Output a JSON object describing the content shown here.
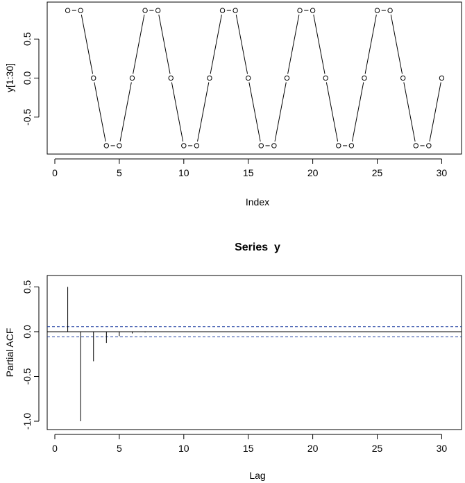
{
  "chart_data": [
    {
      "type": "line",
      "title": "",
      "xlabel": "Index",
      "ylabel": "y[1:30]",
      "xlim": [
        0,
        31
      ],
      "ylim": [
        -0.92,
        0.92
      ],
      "x_ticks": [
        0,
        5,
        10,
        15,
        20,
        25,
        30
      ],
      "y_ticks": [
        -0.5,
        0.0,
        0.5
      ],
      "y_tick_labels": [
        "-0.5",
        "0.0",
        "0.5"
      ],
      "grid": false,
      "marker": "open-circle",
      "style": "both",
      "x": [
        1,
        2,
        3,
        4,
        5,
        6,
        7,
        8,
        9,
        10,
        11,
        12,
        13,
        14,
        15,
        16,
        17,
        18,
        19,
        20,
        21,
        22,
        23,
        24,
        25,
        26,
        27,
        28,
        29,
        30
      ],
      "values": [
        0.866,
        0.866,
        0,
        -0.866,
        -0.866,
        0,
        0.866,
        0.866,
        0,
        -0.866,
        -0.866,
        0,
        0.866,
        0.866,
        0,
        -0.866,
        -0.866,
        0,
        0.866,
        0.866,
        0,
        -0.866,
        -0.866,
        0,
        0.866,
        0.866,
        0,
        -0.866,
        -0.866,
        0
      ]
    },
    {
      "type": "bar",
      "title": "Series  y",
      "xlabel": "Lag",
      "ylabel": "Partial ACF",
      "xlim": [
        0,
        31
      ],
      "ylim": [
        -1.0,
        0.55
      ],
      "x_ticks": [
        0,
        5,
        10,
        15,
        20,
        25,
        30
      ],
      "y_ticks": [
        -1.0,
        -0.5,
        0.0,
        0.5
      ],
      "y_tick_labels": [
        "-1.0",
        "-0.5",
        "0.0",
        "0.5"
      ],
      "grid": false,
      "confidence_band": 0.056,
      "x": [
        1,
        2,
        3,
        4,
        5,
        6,
        7,
        8,
        9,
        10,
        11,
        12,
        13,
        14,
        15,
        16,
        17,
        18,
        19,
        20,
        21,
        22,
        23,
        24,
        25,
        26,
        27,
        28,
        29,
        30
      ],
      "values": [
        0.5,
        -1.0,
        -0.33,
        -0.125,
        -0.05,
        -0.02,
        -0.008,
        -0.003,
        -0.001,
        0,
        0,
        0,
        0,
        0,
        0,
        0,
        0,
        0,
        0,
        0,
        0,
        0,
        0,
        0,
        0,
        0,
        0,
        0,
        0,
        0
      ]
    }
  ]
}
